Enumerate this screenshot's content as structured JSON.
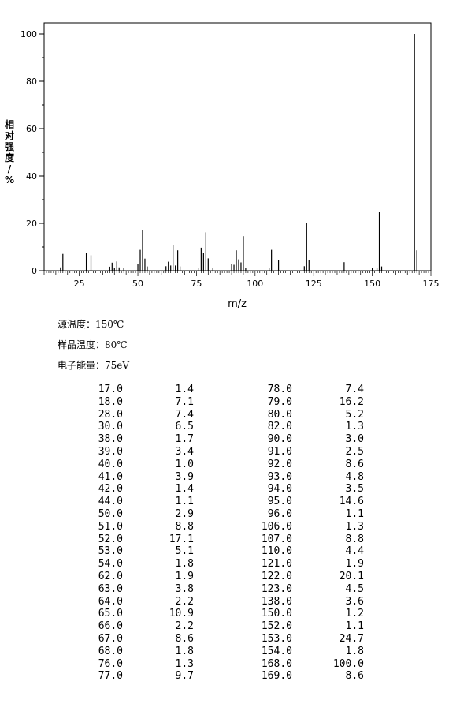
{
  "chart_data": {
    "type": "bar",
    "xlabel": "m/z",
    "ylabel": "相对强度/%",
    "xlim": [
      10,
      175
    ],
    "ylim": [
      0,
      105
    ],
    "x_ticks": [
      25,
      50,
      75,
      100,
      125,
      150,
      175
    ],
    "y_ticks": [
      0,
      20,
      40,
      60,
      80,
      100
    ],
    "grid": false,
    "x": [
      17.0,
      18.0,
      28.0,
      30.0,
      38.0,
      39.0,
      40.0,
      41.0,
      42.0,
      44.0,
      50.0,
      51.0,
      52.0,
      53.0,
      54.0,
      62.0,
      63.0,
      64.0,
      65.0,
      66.0,
      67.0,
      68.0,
      76.0,
      77.0,
      78.0,
      79.0,
      80.0,
      82.0,
      90.0,
      91.0,
      92.0,
      93.0,
      94.0,
      95.0,
      96.0,
      106.0,
      107.0,
      110.0,
      121.0,
      122.0,
      123.0,
      138.0,
      150.0,
      152.0,
      153.0,
      154.0,
      168.0,
      169.0
    ],
    "values": [
      1.4,
      7.1,
      7.4,
      6.5,
      1.7,
      3.4,
      1.0,
      3.9,
      1.4,
      1.1,
      2.9,
      8.8,
      17.1,
      5.1,
      1.8,
      1.9,
      3.8,
      2.2,
      10.9,
      2.2,
      8.6,
      1.8,
      1.3,
      9.7,
      7.4,
      16.2,
      5.2,
      1.3,
      3.0,
      2.5,
      8.6,
      4.8,
      3.5,
      14.6,
      1.1,
      1.3,
      8.8,
      4.4,
      1.9,
      20.1,
      4.5,
      3.6,
      1.2,
      1.1,
      24.7,
      1.8,
      100.0,
      8.6
    ]
  },
  "conditions": {
    "source_temp": "源温度：150℃",
    "sample_temp": "样品温度：80℃",
    "electron_energy": "电子能量：75eV"
  },
  "peak_table": [
    [
      "17.0",
      "1.4",
      "78.0",
      "7.4"
    ],
    [
      "18.0",
      "7.1",
      "79.0",
      "16.2"
    ],
    [
      "28.0",
      "7.4",
      "80.0",
      "5.2"
    ],
    [
      "30.0",
      "6.5",
      "82.0",
      "1.3"
    ],
    [
      "38.0",
      "1.7",
      "90.0",
      "3.0"
    ],
    [
      "39.0",
      "3.4",
      "91.0",
      "2.5"
    ],
    [
      "40.0",
      "1.0",
      "92.0",
      "8.6"
    ],
    [
      "41.0",
      "3.9",
      "93.0",
      "4.8"
    ],
    [
      "42.0",
      "1.4",
      "94.0",
      "3.5"
    ],
    [
      "44.0",
      "1.1",
      "95.0",
      "14.6"
    ],
    [
      "50.0",
      "2.9",
      "96.0",
      "1.1"
    ],
    [
      "51.0",
      "8.8",
      "106.0",
      "1.3"
    ],
    [
      "52.0",
      "17.1",
      "107.0",
      "8.8"
    ],
    [
      "53.0",
      "5.1",
      "110.0",
      "4.4"
    ],
    [
      "54.0",
      "1.8",
      "121.0",
      "1.9"
    ],
    [
      "62.0",
      "1.9",
      "122.0",
      "20.1"
    ],
    [
      "63.0",
      "3.8",
      "123.0",
      "4.5"
    ],
    [
      "64.0",
      "2.2",
      "138.0",
      "3.6"
    ],
    [
      "65.0",
      "10.9",
      "150.0",
      "1.2"
    ],
    [
      "66.0",
      "2.2",
      "152.0",
      "1.1"
    ],
    [
      "67.0",
      "8.6",
      "153.0",
      "24.7"
    ],
    [
      "68.0",
      "1.8",
      "154.0",
      "1.8"
    ],
    [
      "76.0",
      "1.3",
      "168.0",
      "100.0"
    ],
    [
      "77.0",
      "9.7",
      "169.0",
      "8.6"
    ]
  ]
}
